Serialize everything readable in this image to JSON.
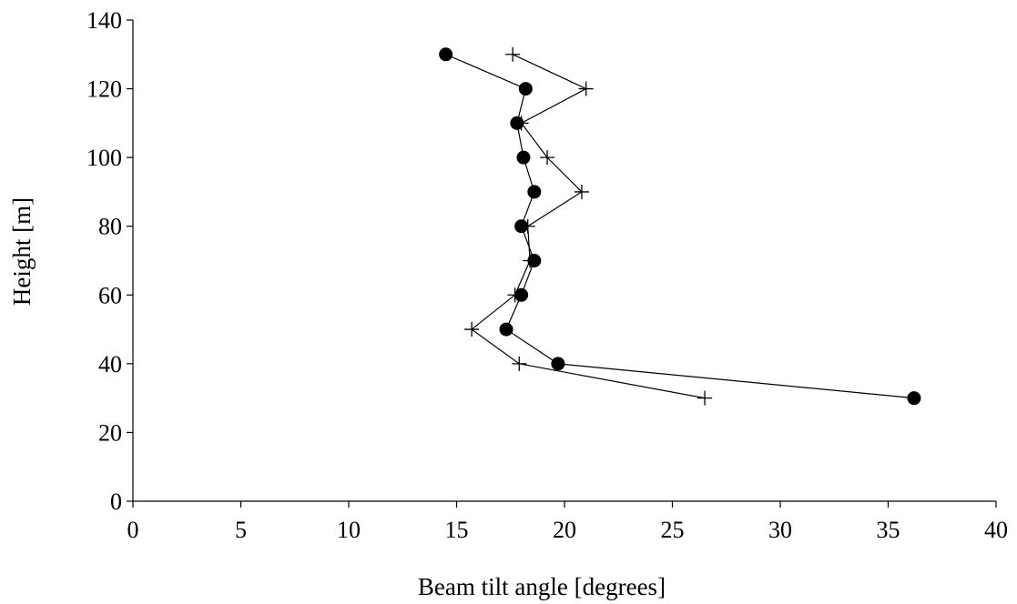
{
  "chart_data": {
    "type": "scatter",
    "title": "",
    "xlabel": "Beam tilt angle [degrees]",
    "ylabel": "Height [m]",
    "xlim": [
      0,
      40
    ],
    "ylim": [
      0,
      140
    ],
    "xticks": [
      0,
      5,
      10,
      15,
      20,
      25,
      30,
      35,
      40
    ],
    "yticks": [
      0,
      20,
      40,
      60,
      80,
      100,
      120,
      140
    ],
    "grid": false,
    "legend": "none",
    "series": [
      {
        "marker": "filled-circle",
        "color": "#000000",
        "points": [
          {
            "x": 14.5,
            "y": 130
          },
          {
            "x": 18.2,
            "y": 120
          },
          {
            "x": 17.8,
            "y": 110
          },
          {
            "x": 18.1,
            "y": 100
          },
          {
            "x": 18.6,
            "y": 90
          },
          {
            "x": 18.0,
            "y": 80
          },
          {
            "x": 18.6,
            "y": 70
          },
          {
            "x": 18.0,
            "y": 60
          },
          {
            "x": 17.3,
            "y": 50
          },
          {
            "x": 19.7,
            "y": 40
          },
          {
            "x": 36.2,
            "y": 30
          }
        ]
      },
      {
        "marker": "plus",
        "color": "#000000",
        "points": [
          {
            "x": 17.6,
            "y": 130
          },
          {
            "x": 21.0,
            "y": 120
          },
          {
            "x": 18.0,
            "y": 110
          },
          {
            "x": 19.2,
            "y": 100
          },
          {
            "x": 20.8,
            "y": 90
          },
          {
            "x": 18.3,
            "y": 80
          },
          {
            "x": 18.4,
            "y": 70
          },
          {
            "x": 17.7,
            "y": 60
          },
          {
            "x": 15.7,
            "y": 50
          },
          {
            "x": 17.9,
            "y": 40
          },
          {
            "x": 26.5,
            "y": 30
          }
        ]
      }
    ]
  }
}
